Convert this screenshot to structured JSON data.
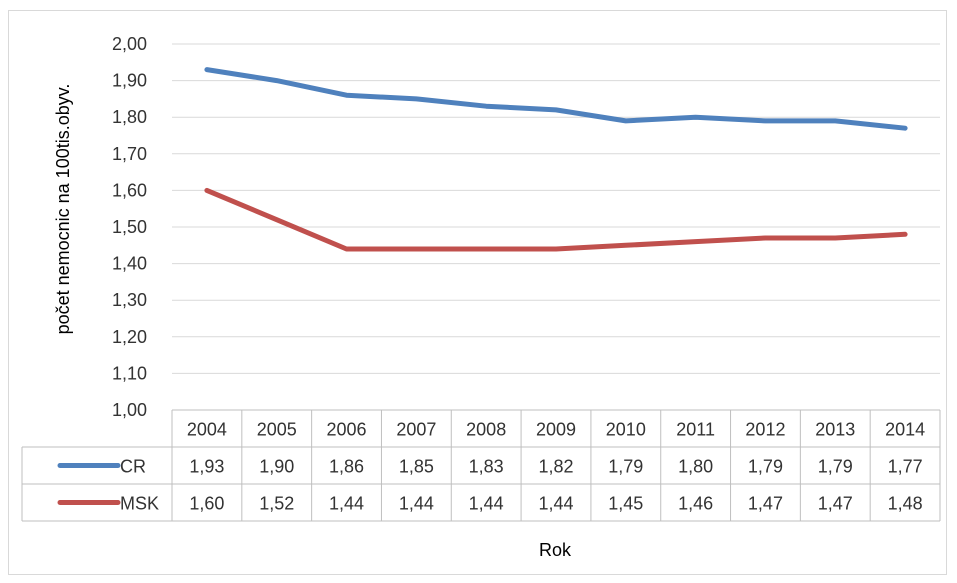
{
  "chart_data": {
    "type": "line",
    "title": "",
    "xlabel": "Rok",
    "ylabel": "počet nemocnic na 100tis.obyv.",
    "ylim": [
      1.0,
      2.0
    ],
    "yticks": [
      "1,00",
      "1,10",
      "1,20",
      "1,30",
      "1,40",
      "1,50",
      "1,60",
      "1,70",
      "1,80",
      "1,90",
      "2,00"
    ],
    "categories": [
      "2004",
      "2005",
      "2006",
      "2007",
      "2008",
      "2009",
      "2010",
      "2011",
      "2012",
      "2013",
      "2014"
    ],
    "series": [
      {
        "name": "CR",
        "color": "#4f81bd",
        "values": [
          1.93,
          1.9,
          1.86,
          1.85,
          1.83,
          1.82,
          1.79,
          1.8,
          1.79,
          1.79,
          1.77
        ],
        "labels": [
          "1,93",
          "1,90",
          "1,86",
          "1,85",
          "1,83",
          "1,82",
          "1,79",
          "1,80",
          "1,79",
          "1,79",
          "1,77"
        ]
      },
      {
        "name": "MSK",
        "color": "#c0504d",
        "values": [
          1.6,
          1.52,
          1.44,
          1.44,
          1.44,
          1.44,
          1.45,
          1.46,
          1.47,
          1.47,
          1.48
        ],
        "labels": [
          "1,60",
          "1,52",
          "1,44",
          "1,44",
          "1,44",
          "1,44",
          "1,45",
          "1,46",
          "1,47",
          "1,47",
          "1,48"
        ]
      }
    ],
    "grid": true,
    "legend": "data-table"
  }
}
